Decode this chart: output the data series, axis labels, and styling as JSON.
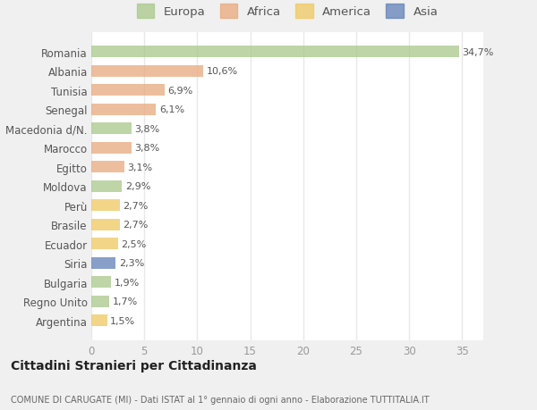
{
  "countries": [
    "Romania",
    "Albania",
    "Tunisia",
    "Senegal",
    "Macedonia d/N.",
    "Marocco",
    "Egitto",
    "Moldova",
    "Perù",
    "Brasile",
    "Ecuador",
    "Siria",
    "Bulgaria",
    "Regno Unito",
    "Argentina"
  ],
  "values": [
    34.7,
    10.6,
    6.9,
    6.1,
    3.8,
    3.8,
    3.1,
    2.9,
    2.7,
    2.7,
    2.5,
    2.3,
    1.9,
    1.7,
    1.5
  ],
  "labels": [
    "34,7%",
    "10,6%",
    "6,9%",
    "6,1%",
    "3,8%",
    "3,8%",
    "3,1%",
    "2,9%",
    "2,7%",
    "2,7%",
    "2,5%",
    "2,3%",
    "1,9%",
    "1,7%",
    "1,5%"
  ],
  "categories": [
    "Europa",
    "Africa",
    "America",
    "Asia"
  ],
  "bar_colors": [
    "#a8c88a",
    "#e8a87c",
    "#e8a87c",
    "#e8a87c",
    "#a8c88a",
    "#e8a87c",
    "#e8a87c",
    "#a8c88a",
    "#f0c860",
    "#f0c860",
    "#f0c860",
    "#6080b8",
    "#a8c88a",
    "#a8c88a",
    "#f0c860"
  ],
  "legend_colors": [
    "#a8c88a",
    "#e8a87c",
    "#f0c860",
    "#6080b8"
  ],
  "title": "Cittadini Stranieri per Cittadinanza",
  "subtitle": "COMUNE DI CARUGATE (MI) - Dati ISTAT al 1° gennaio di ogni anno - Elaborazione TUTTITALIA.IT",
  "xlim": [
    0,
    37
  ],
  "xticks": [
    0,
    5,
    10,
    15,
    20,
    25,
    30,
    35
  ],
  "plot_bg": "#ffffff",
  "fig_bg": "#f0f0f0",
  "grid_color": "#e8e8e8",
  "bar_alpha": 0.75
}
